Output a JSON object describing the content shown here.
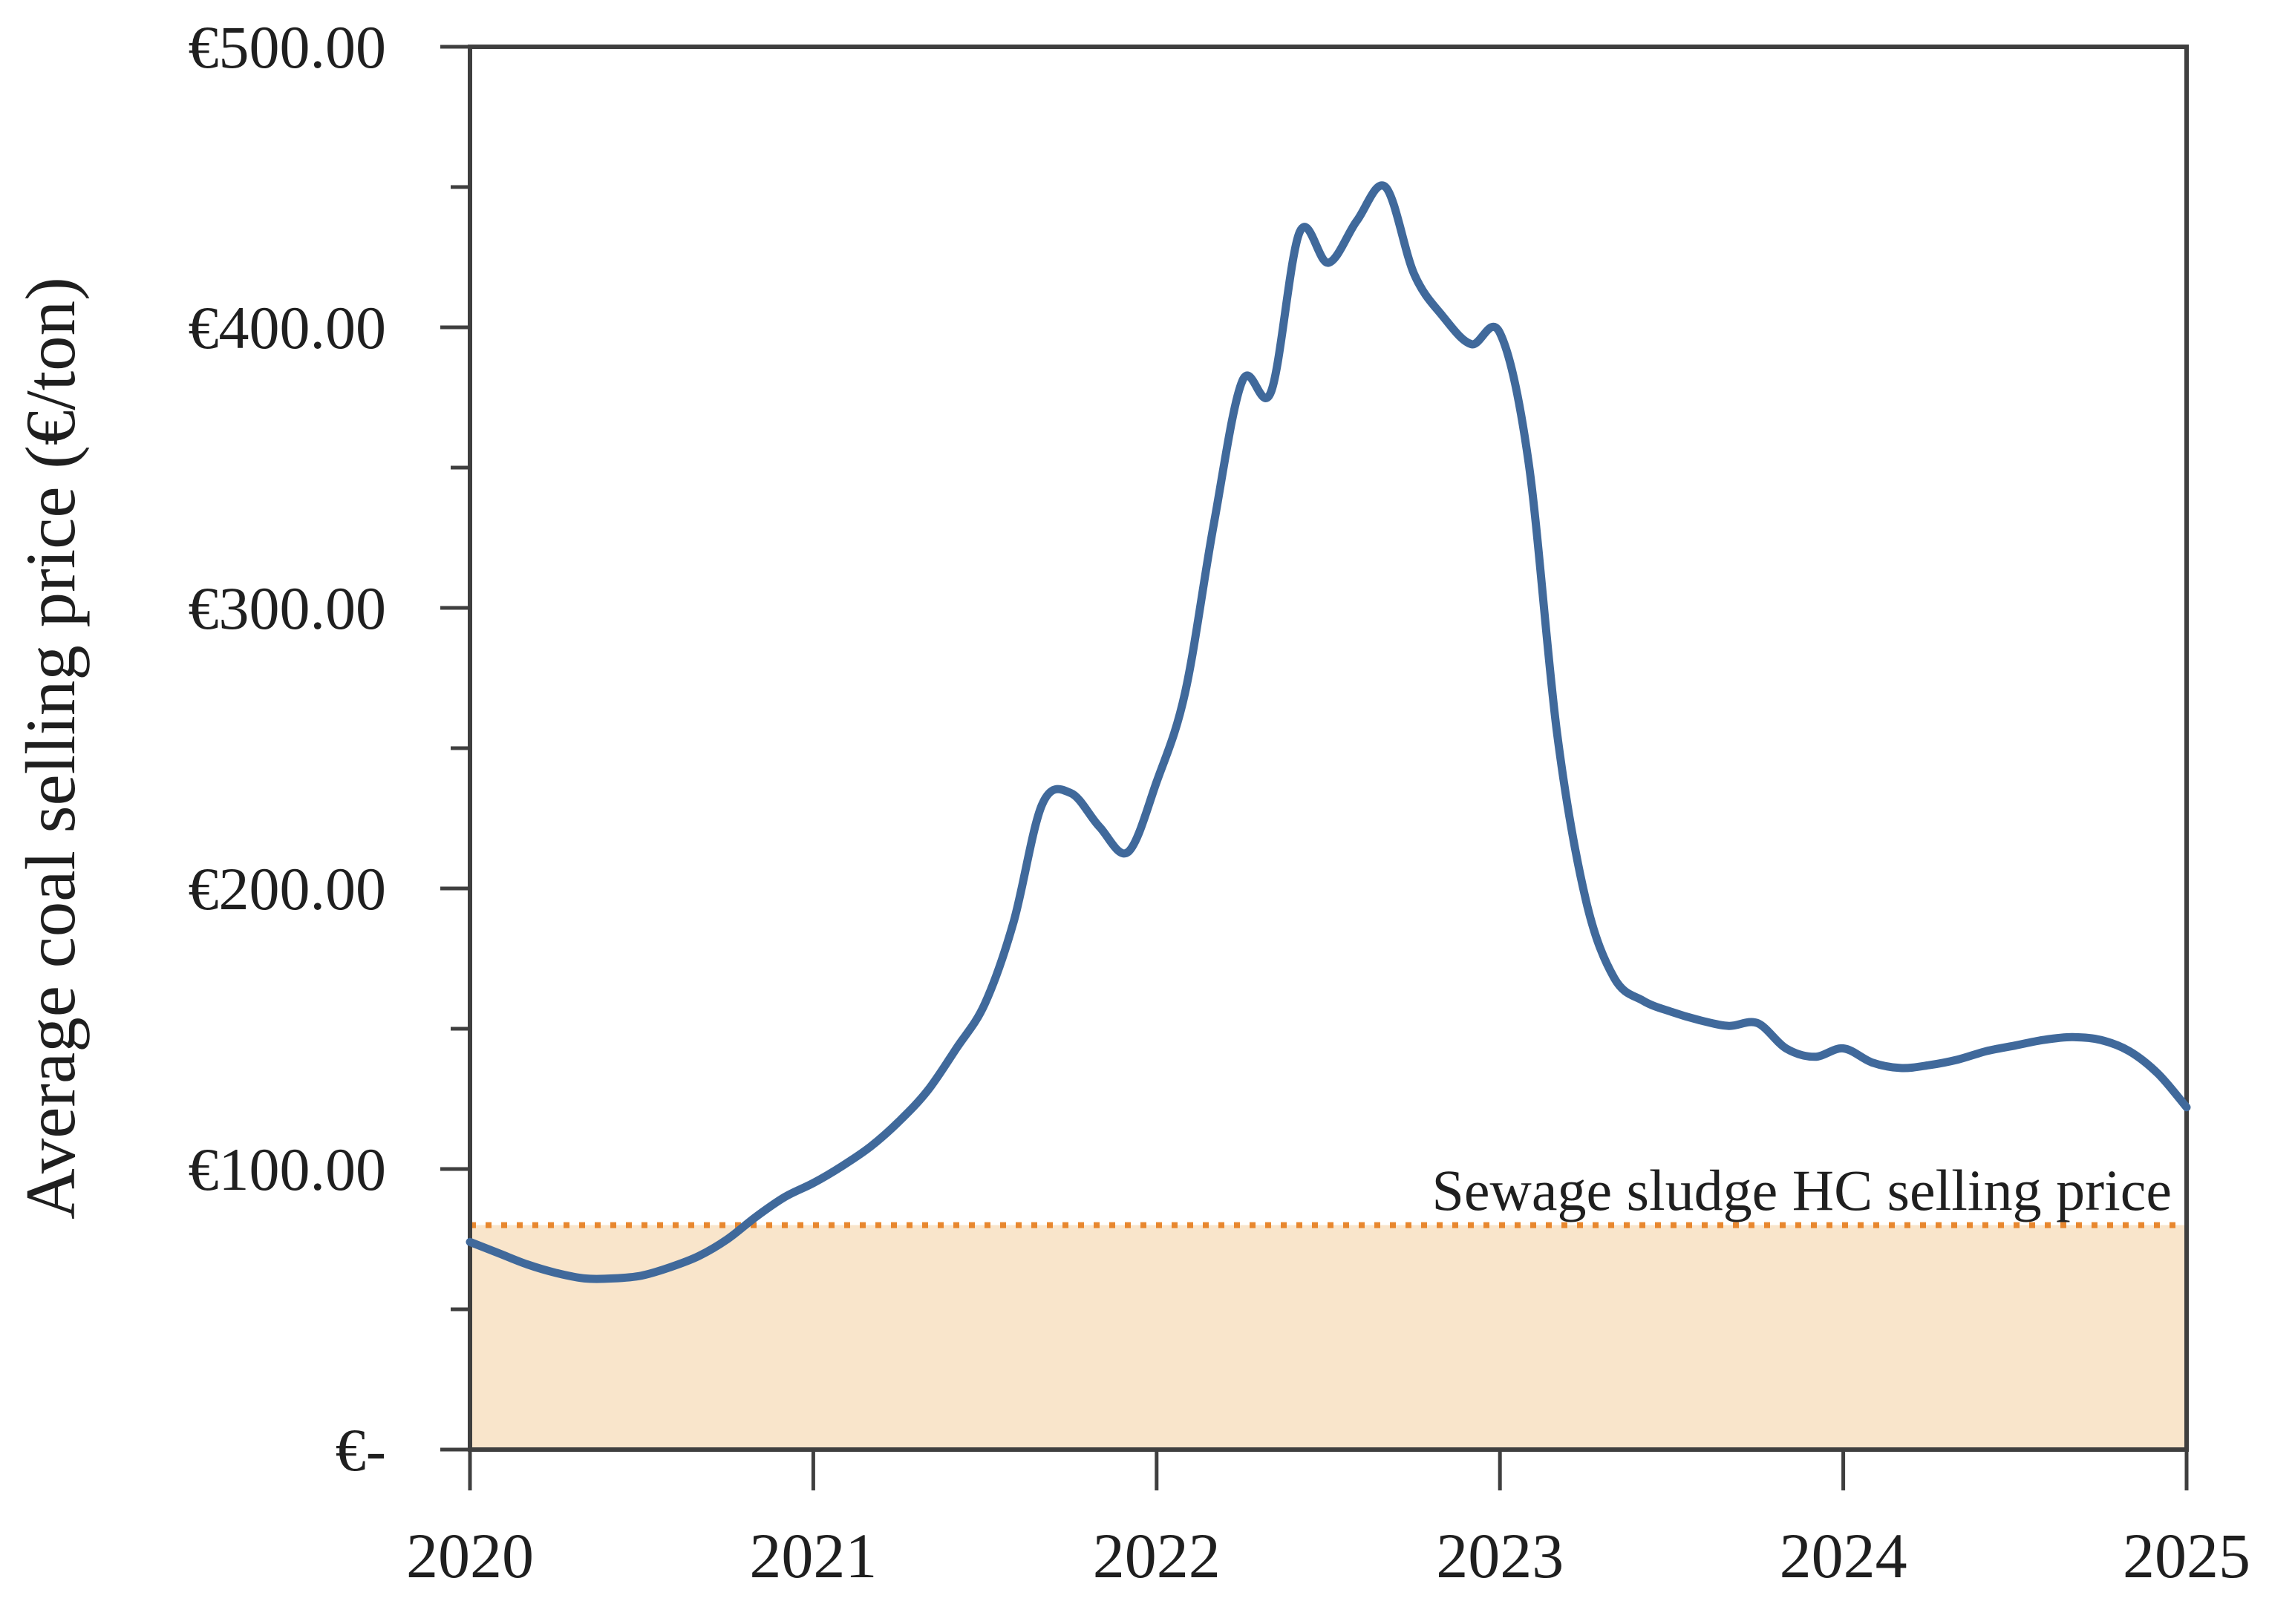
{
  "chart_data": {
    "type": "line",
    "title": "",
    "xlabel": "",
    "ylabel": "Average coal selling price (€/ton)",
    "xlim": [
      2020,
      2025
    ],
    "ylim": [
      0,
      500
    ],
    "grid": false,
    "x_tick_labels": [
      "2020",
      "2021",
      "2022",
      "2023",
      "2024",
      "2025"
    ],
    "y_tick_labels": [
      "€500.00",
      "€400.00",
      "€300.00",
      "€200.00",
      "€100.00",
      "€-"
    ],
    "y_major_step": 100,
    "y_minor_step": 50,
    "series": [
      {
        "name": "Average coal selling price",
        "color": "#40699B",
        "start_year": 2020,
        "interval": "monthly",
        "values": [
          74,
          70,
          66,
          63,
          61,
          61,
          62,
          65,
          69,
          75,
          83,
          90,
          95,
          101,
          108,
          117,
          128,
          143,
          159,
          188,
          230,
          234,
          222,
          213,
          238,
          270,
          330,
          381,
          377,
          434,
          423,
          438,
          450,
          419,
          404,
          394,
          398,
          352,
          255,
          196,
          168,
          160,
          156,
          153,
          151,
          152,
          143,
          140,
          143,
          138,
          136,
          137,
          139,
          142,
          144,
          146,
          147,
          146,
          142,
          134,
          122
        ]
      }
    ],
    "threshold": {
      "label": "Sewage sludge HC selling price",
      "value": 80,
      "line_color": "#E8872E",
      "band_color": "#F9E5CB",
      "label_color": "#DC7A22"
    }
  }
}
